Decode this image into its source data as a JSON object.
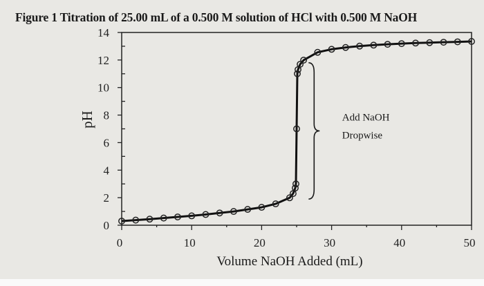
{
  "figure": {
    "title": "Figure 1 Titration of 25.00 mL of a 0.500 M solution of HCl with 0.500 M NaOH"
  },
  "chart_data": {
    "type": "line",
    "title": "Figure 1 Titration of 25.00 mL of a 0.500 M solution of HCl with 0.500 M NaOH",
    "xlabel": "Volume NaOH Added (mL)",
    "ylabel": "pH",
    "xlim": [
      0,
      50
    ],
    "ylim": [
      0,
      14
    ],
    "x_ticks": [
      0,
      10,
      20,
      30,
      40,
      50
    ],
    "y_ticks": [
      0,
      2,
      4,
      6,
      8,
      10,
      12,
      14
    ],
    "grid": false,
    "legend": null,
    "markers": "open-circle",
    "series": [
      {
        "name": "pH",
        "x": [
          0,
          2,
          4,
          6,
          8,
          10,
          12,
          14,
          16,
          18,
          20,
          22,
          24,
          24.5,
          24.8,
          24.9,
          25.0,
          25.1,
          25.2,
          25.5,
          26,
          28,
          30,
          32,
          34,
          36,
          38,
          40,
          42,
          44,
          46,
          48,
          50
        ],
        "y": [
          0.3,
          0.37,
          0.44,
          0.52,
          0.6,
          0.68,
          0.78,
          0.89,
          1.0,
          1.15,
          1.3,
          1.55,
          1.99,
          2.3,
          2.7,
          3.0,
          7.0,
          11.0,
          11.3,
          11.69,
          11.99,
          12.56,
          12.78,
          12.91,
          13.01,
          13.08,
          13.14,
          13.19,
          13.23,
          13.26,
          13.29,
          13.32,
          13.35
        ]
      }
    ],
    "annotations": [
      {
        "text": "Add NaOH",
        "x": 31.5,
        "y": 7.6
      },
      {
        "text": "Dropwise",
        "x": 31.5,
        "y": 6.3
      },
      {
        "type": "curly-brace",
        "x": 27.5,
        "y_range": [
          1.9,
          11.8
        ]
      }
    ]
  }
}
